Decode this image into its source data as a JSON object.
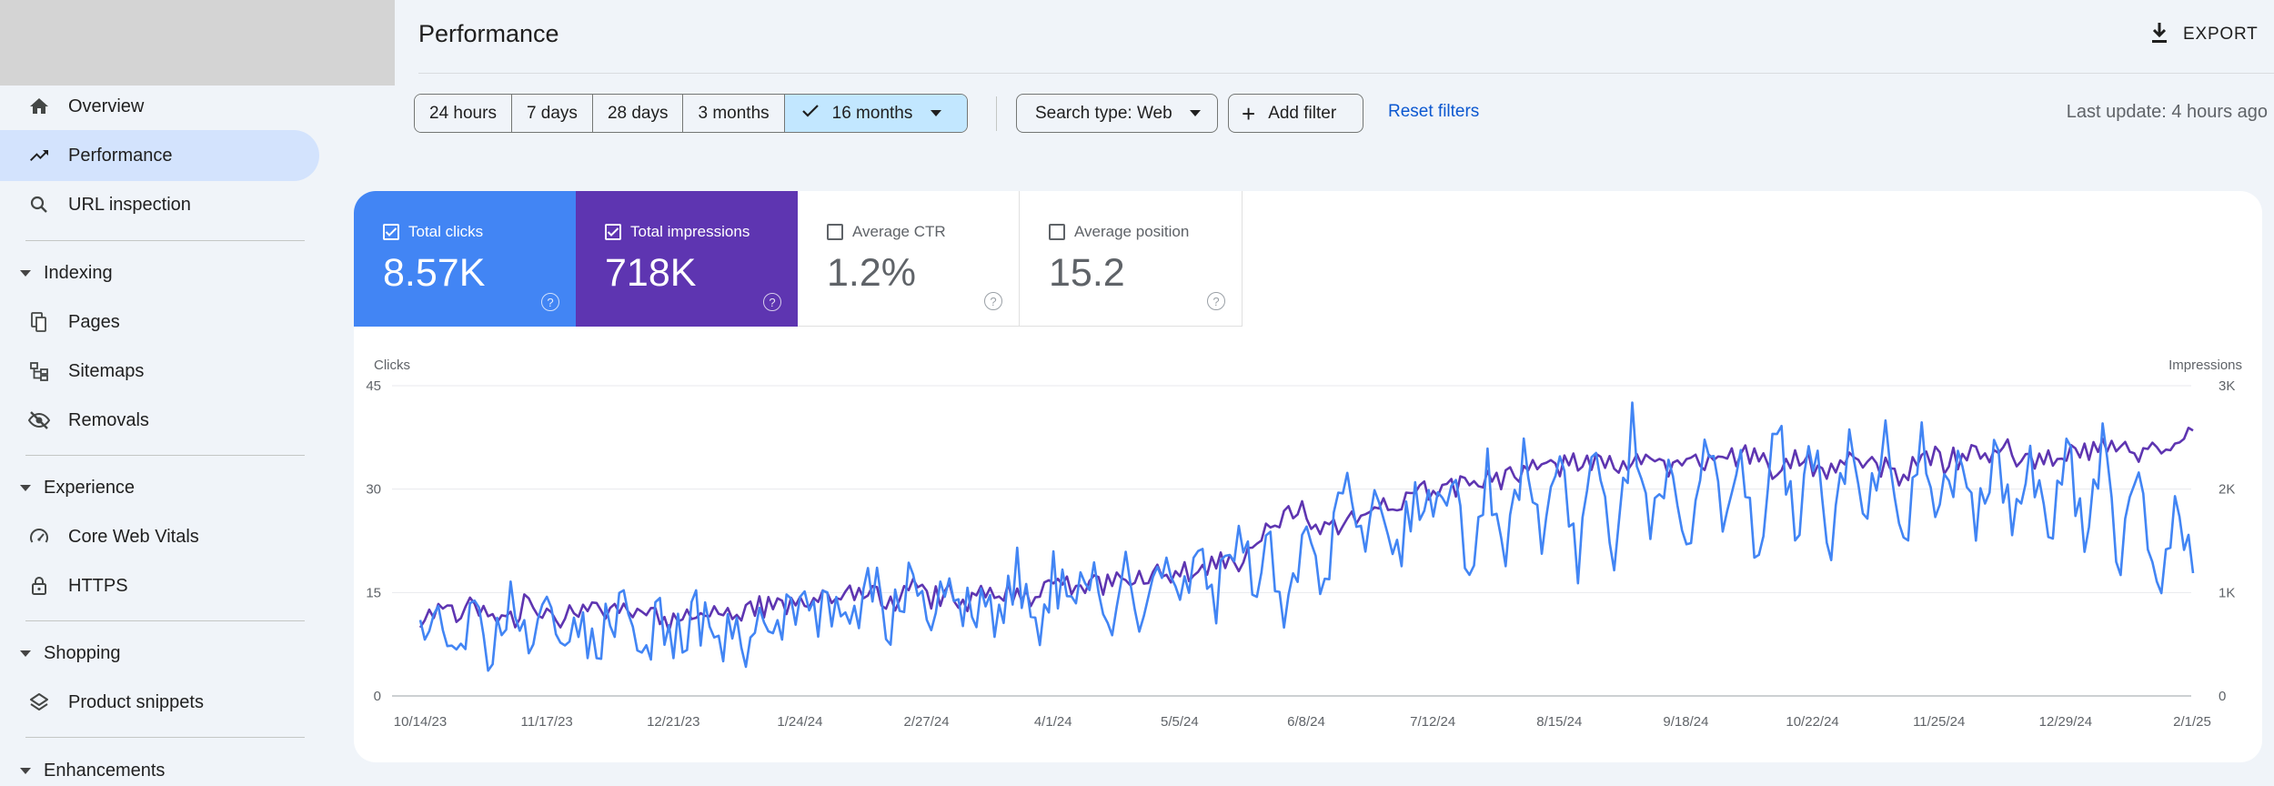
{
  "sidebar": {
    "items": [
      {
        "label": "Overview",
        "icon": "home-icon"
      },
      {
        "label": "Performance",
        "icon": "trending-up-icon",
        "active": true
      },
      {
        "label": "URL inspection",
        "icon": "search-icon"
      }
    ],
    "sections": [
      {
        "label": "Indexing",
        "items": [
          {
            "label": "Pages",
            "icon": "pages-icon"
          },
          {
            "label": "Sitemaps",
            "icon": "sitemap-icon"
          },
          {
            "label": "Removals",
            "icon": "eye-off-icon"
          }
        ]
      },
      {
        "label": "Experience",
        "items": [
          {
            "label": "Core Web Vitals",
            "icon": "speedometer-icon"
          },
          {
            "label": "HTTPS",
            "icon": "lock-icon"
          }
        ]
      },
      {
        "label": "Shopping",
        "items": [
          {
            "label": "Product snippets",
            "icon": "layers-icon"
          }
        ]
      },
      {
        "label": "Enhancements",
        "items": []
      }
    ]
  },
  "header": {
    "title": "Performance",
    "export_label": "EXPORT"
  },
  "filters": {
    "date_ranges": [
      "24 hours",
      "7 days",
      "28 days",
      "3 months",
      "16 months"
    ],
    "selected_range": "16 months",
    "search_type": "Search type: Web",
    "add_filter": "Add filter",
    "reset": "Reset filters",
    "last_update": "Last update: 4 hours ago"
  },
  "metrics": {
    "clicks": {
      "label": "Total clicks",
      "value": "8.57K",
      "checked": true
    },
    "impressions": {
      "label": "Total impressions",
      "value": "718K",
      "checked": true
    },
    "ctr": {
      "label": "Average CTR",
      "value": "1.2%",
      "checked": false
    },
    "position": {
      "label": "Average position",
      "value": "15.2",
      "checked": false
    },
    "help_glyph": "?"
  },
  "colors": {
    "clicks": "#4285f4",
    "impressions": "#5e35b1",
    "accent_selected": "#c2e7ff",
    "link": "#0b57d0"
  },
  "chart_data": {
    "type": "line",
    "ylabel_left": "Clicks",
    "ylabel_right": "Impressions",
    "y_ticks_left": [
      "45",
      "30",
      "15",
      "0"
    ],
    "y_ticks_right": [
      "3K",
      "2K",
      "1K",
      "0"
    ],
    "ylim_left": [
      0,
      45
    ],
    "ylim_right": [
      0,
      3000
    ],
    "x_tick_labels": [
      "10/14/23",
      "11/17/23",
      "12/21/23",
      "1/24/24",
      "2/27/24",
      "4/1/24",
      "5/5/24",
      "6/8/24",
      "7/12/24",
      "8/15/24",
      "9/18/24",
      "10/22/24",
      "11/25/24",
      "12/29/24",
      "2/1/25"
    ],
    "grid": true,
    "x_start": "10/14/23",
    "x_end": "2/12/25",
    "series": [
      {
        "name": "Clicks",
        "axis": "left",
        "color": "#4285f4",
        "weekly_values": [
          10,
          14,
          6,
          13,
          7,
          15,
          8,
          12,
          6,
          11,
          8,
          13,
          7,
          11,
          6,
          12,
          8,
          10,
          7,
          13,
          9,
          14,
          11,
          15,
          12,
          16,
          9,
          18,
          11,
          16,
          13,
          15,
          12,
          19,
          10,
          18,
          13,
          17,
          11,
          19,
          12,
          18,
          14,
          20,
          13,
          22,
          16,
          21,
          12,
          24,
          18,
          30,
          22,
          28,
          21,
          30,
          24,
          31,
          20,
          35,
          18,
          37,
          22,
          33,
          17,
          38,
          20,
          40,
          24,
          36,
          22,
          38,
          26,
          36,
          20,
          39,
          25,
          34,
          22,
          37,
          24,
          38,
          21,
          40,
          26,
          35,
          22,
          38,
          24,
          36,
          21,
          37,
          20,
          39,
          18,
          34,
          14,
          30,
          17
        ]
      },
      {
        "name": "Impressions",
        "axis": "right",
        "color": "#5e35b1",
        "weekly_values": [
          660,
          880,
          730,
          920,
          820,
          760,
          880,
          830,
          690,
          890,
          800,
          760,
          860,
          790,
          720,
          820,
          760,
          810,
          840,
          830,
          930,
          910,
          870,
          960,
          920,
          1000,
          880,
          1050,
          960,
          1020,
          930,
          990,
          1010,
          1060,
          950,
          1080,
          1020,
          1040,
          1120,
          1110,
          1090,
          1180,
          1150,
          1200,
          1240,
          1280,
          1460,
          1630,
          1760,
          1740,
          1630,
          1720,
          1690,
          1780,
          1850,
          2030,
          1980,
          2070,
          2030,
          2160,
          2120,
          2230,
          2280,
          2190,
          2230,
          2280,
          2160,
          2320,
          2260,
          2200,
          2300,
          2240,
          2330,
          2320,
          2260,
          2200,
          2300,
          2180,
          2240,
          2310,
          2280,
          2220,
          2160,
          2320,
          2300,
          2250,
          2330,
          2400,
          2340,
          2260,
          2300,
          2280,
          2370,
          2420,
          2380,
          2330,
          2400,
          2460,
          2500
        ]
      }
    ]
  }
}
